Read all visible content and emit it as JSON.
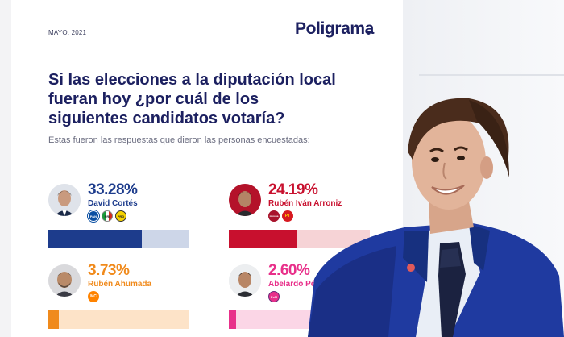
{
  "header": {
    "date": "MAYO, 2021",
    "brand": "Poligrama"
  },
  "question": "Si las elecciones a la diputación local fueran hoy ¿por cuál de los siguientes candidatos votaría?",
  "subtitle": "Estas fueron las respuestas que dieron las personas encuestadas:",
  "colors": {
    "david": "#1d3c8c",
    "david_track": "#cdd6e8",
    "ruben_ivan": "#c8102e",
    "ruben_ivan_track": "#f6d3d6",
    "ruben_a": "#f08a1c",
    "ruben_a_track": "#fde3c8",
    "abelardo": "#e8308a",
    "abelardo_track": "#fbd6e6"
  },
  "chart_data": {
    "type": "bar",
    "title": "Si las elecciones a la diputación local fueran hoy ¿por cuál de los siguientes candidatos votaría?",
    "categories": [
      "David Cortés",
      "Rubén Iván Arroniz",
      "Rubén Ahumada",
      "Abelardo Pérez"
    ],
    "values": [
      33.28,
      24.19,
      3.73,
      2.6
    ],
    "value_labels": [
      "33.28%",
      "24.19%",
      "3.73%",
      "2.60%"
    ],
    "unit": "%",
    "ylim": [
      0,
      50
    ],
    "grid": false,
    "legend": "none"
  },
  "candidates": [
    {
      "pct": "33.28%",
      "name": "David Cortés",
      "value": 33.28,
      "color": "#1d3c8c",
      "track": "#cdd6e8",
      "parties": [
        "pan-logo",
        "pri-logo",
        "prd-logo"
      ]
    },
    {
      "pct": "24.19%",
      "name": "Rubén Iván Arroniz",
      "value": 24.19,
      "color": "#c8102e",
      "track": "#f6d3d6",
      "parties": [
        "morena-logo",
        "pt-logo"
      ]
    },
    {
      "pct": "3.73%",
      "name": "Rubén Ahumada",
      "value": 3.73,
      "color": "#f08a1c",
      "track": "#fde3c8",
      "parties": [
        "mc-logo"
      ]
    },
    {
      "pct": "2.60%",
      "name": "Abelardo Pérez",
      "value": 2.6,
      "color": "#e8308a",
      "track": "#fbd6e6",
      "parties": [
        "fuerza-logo"
      ]
    }
  ],
  "party_logos": {
    "pan": "PAN",
    "pri": "PRI",
    "prd": "PRD",
    "morena": "morena",
    "pt": "PT",
    "mc": "MC",
    "fuerza": "FxM"
  }
}
